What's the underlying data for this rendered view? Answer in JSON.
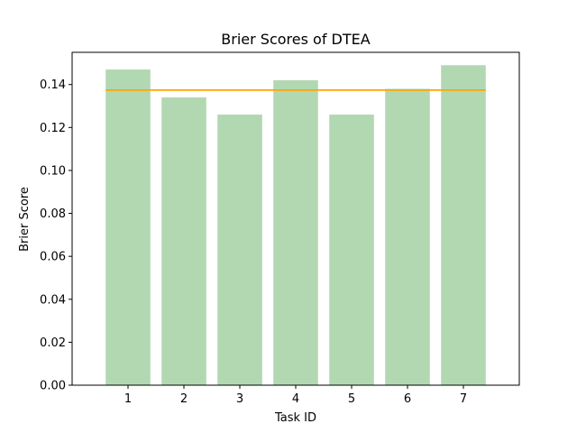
{
  "chart_data": {
    "type": "bar",
    "title": "Brier Scores of DTEA",
    "xlabel": "Task ID",
    "ylabel": "Brier Score",
    "categories": [
      "1",
      "2",
      "3",
      "4",
      "5",
      "6",
      "7"
    ],
    "values": [
      0.147,
      0.134,
      0.126,
      0.142,
      0.126,
      0.138,
      0.149
    ],
    "reference_line": 0.1374,
    "ylim": [
      0,
      0.155
    ],
    "yticks": [
      "0.00",
      "0.02",
      "0.04",
      "0.06",
      "0.08",
      "0.10",
      "0.12",
      "0.14"
    ],
    "grid": false,
    "bar_color": "#b2d8b2",
    "line_color": "#ffa500"
  }
}
